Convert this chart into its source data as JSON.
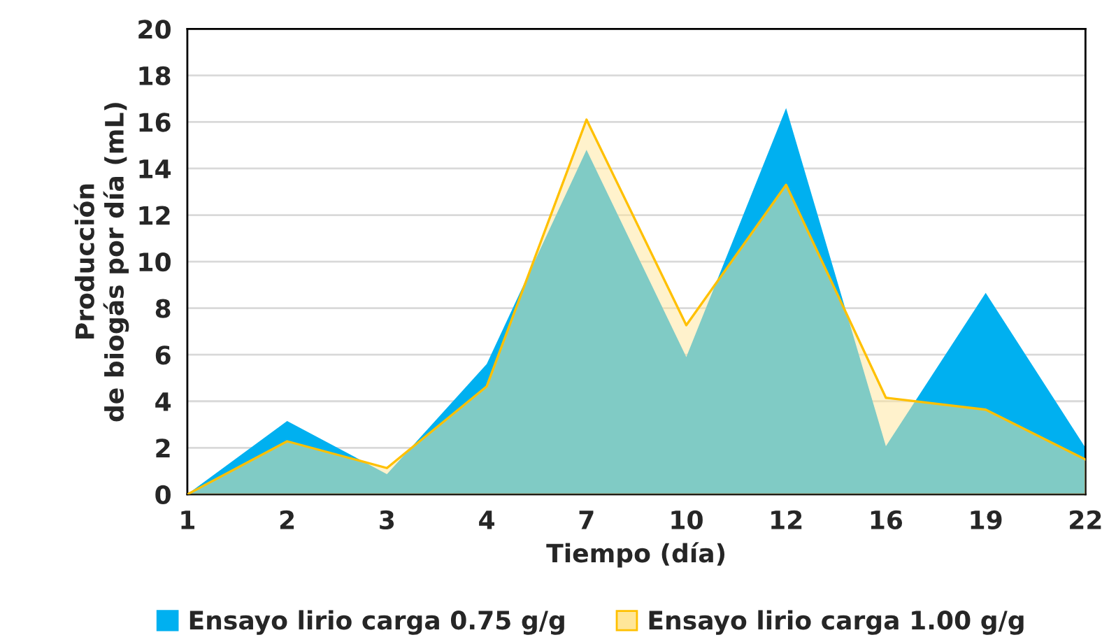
{
  "chart_data": {
    "type": "area",
    "xlabel": "Tiempo (día)",
    "ylabel": "Producción\nde biogás por día (mL)",
    "categories": [
      "1",
      "2",
      "3",
      "4",
      "7",
      "10",
      "12",
      "16",
      "19",
      "22"
    ],
    "series": [
      {
        "name": "Ensayo lirio carga 0.75 g/g",
        "color": "#00b0f0",
        "values": [
          0,
          3.15,
          0.87,
          5.6,
          14.8,
          5.9,
          16.6,
          2.07,
          8.66,
          2.0
        ]
      },
      {
        "name": "Ensayo lirio carga 1.00 g/g",
        "color": "#ffe699",
        "values": [
          0,
          2.28,
          1.13,
          4.64,
          16.1,
          7.27,
          13.3,
          4.15,
          3.64,
          1.5
        ]
      }
    ],
    "ylim": [
      0,
      20
    ],
    "yticks": [
      0,
      2,
      4,
      6,
      8,
      10,
      12,
      14,
      16,
      18,
      20
    ],
    "grid": "y",
    "legend": "bottom"
  }
}
